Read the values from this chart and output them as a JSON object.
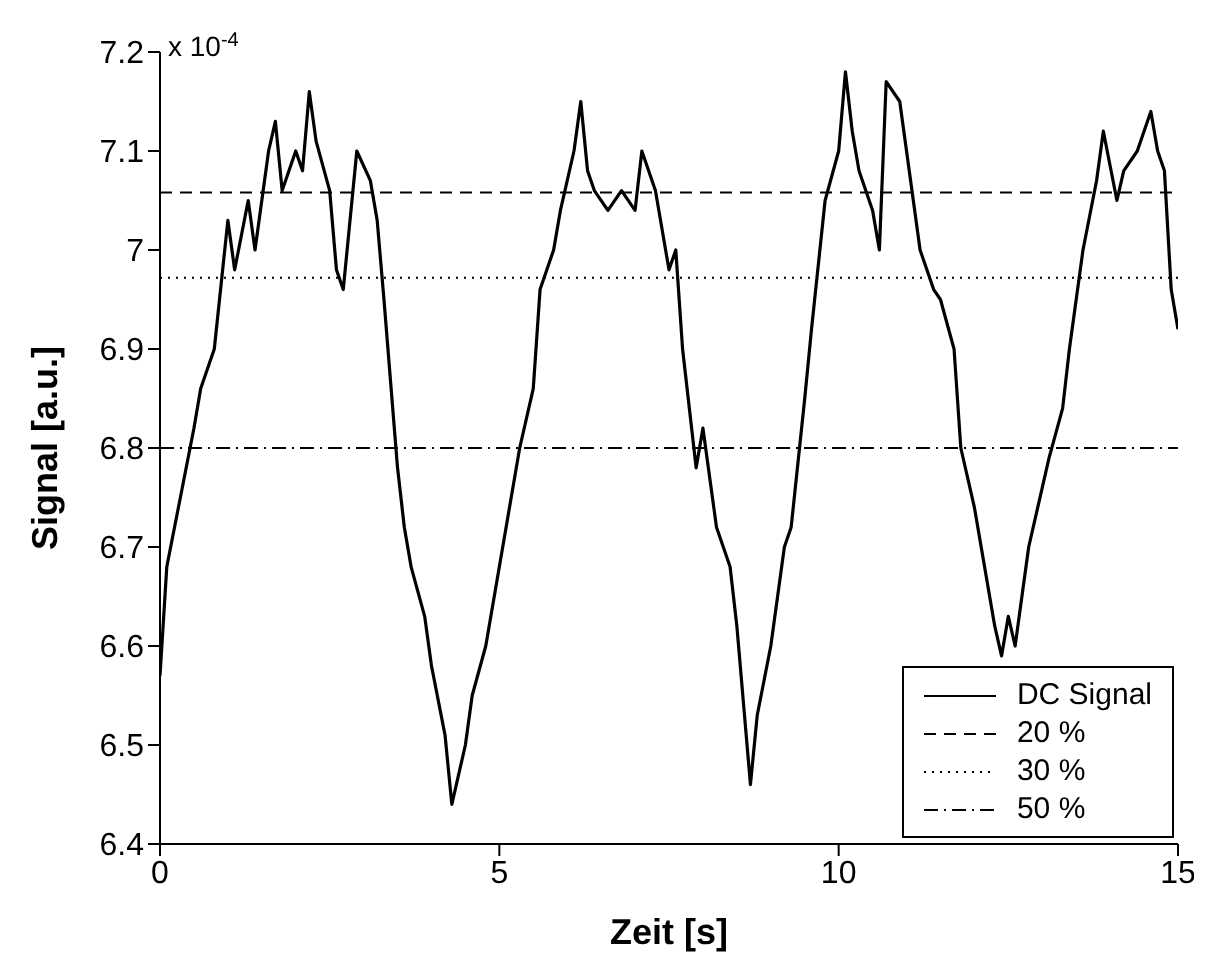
{
  "chart_data": {
    "type": "line",
    "xlabel": "Zeit [s]",
    "ylabel": "Signal [a.u.]",
    "annotations": [
      "x 10$^{-4}$"
    ],
    "xlim": [
      0,
      15
    ],
    "xticks": [
      0,
      5,
      10,
      15
    ],
    "ylim": [
      6.4,
      7.2
    ],
    "yticks": [
      6.4,
      6.5,
      6.6,
      6.7,
      6.8,
      6.9,
      7,
      7.1,
      7.2
    ],
    "legend": "bottom right",
    "series": [
      {
        "name": "DC Signal",
        "color": "#000000",
        "line_style": "solid",
        "x": [
          0,
          0.1,
          0.3,
          0.5,
          0.6,
          0.8,
          1.0,
          1.1,
          1.3,
          1.4,
          1.6,
          1.7,
          1.8,
          2.0,
          2.1,
          2.2,
          2.3,
          2.5,
          2.6,
          2.7,
          2.9,
          3.1,
          3.2,
          3.3,
          3.5,
          3.6,
          3.7,
          3.9,
          4.0,
          4.2,
          4.3,
          4.4,
          4.5,
          4.6,
          4.8,
          5.0,
          5.1,
          5.3,
          5.5,
          5.6,
          5.8,
          5.9,
          6.1,
          6.2,
          6.3,
          6.4,
          6.6,
          6.8,
          7.0,
          7.1,
          7.3,
          7.5,
          7.6,
          7.7,
          7.9,
          8.0,
          8.2,
          8.4,
          8.5,
          8.7,
          8.8,
          9.0,
          9.2,
          9.3,
          9.5,
          9.6,
          9.8,
          10.0,
          10.1,
          10.2,
          10.3,
          10.5,
          10.6,
          10.7,
          10.9,
          11.0,
          11.2,
          11.4,
          11.5,
          11.7,
          11.8,
          12.0,
          12.1,
          12.3,
          12.4,
          12.5,
          12.6,
          12.8,
          13.0,
          13.1,
          13.3,
          13.4,
          13.6,
          13.8,
          13.9,
          14.1,
          14.2,
          14.4,
          14.5,
          14.6,
          14.7,
          14.8,
          14.9,
          15.0
        ],
        "values": [
          6.57,
          6.68,
          6.75,
          6.82,
          6.86,
          6.9,
          7.03,
          6.98,
          7.05,
          7.0,
          7.1,
          7.13,
          7.06,
          7.1,
          7.08,
          7.16,
          7.11,
          7.06,
          6.98,
          6.96,
          7.1,
          7.07,
          7.03,
          6.95,
          6.78,
          6.72,
          6.68,
          6.63,
          6.58,
          6.51,
          6.44,
          6.47,
          6.5,
          6.55,
          6.6,
          6.68,
          6.72,
          6.8,
          6.86,
          6.96,
          7.0,
          7.04,
          7.1,
          7.15,
          7.08,
          7.06,
          7.04,
          7.06,
          7.04,
          7.1,
          7.06,
          6.98,
          7.0,
          6.9,
          6.78,
          6.82,
          6.72,
          6.68,
          6.62,
          6.46,
          6.53,
          6.6,
          6.7,
          6.72,
          6.85,
          6.92,
          7.05,
          7.1,
          7.18,
          7.12,
          7.08,
          7.04,
          7.0,
          7.17,
          7.15,
          7.1,
          7.0,
          6.96,
          6.95,
          6.9,
          6.8,
          6.74,
          6.7,
          6.62,
          6.59,
          6.63,
          6.6,
          6.7,
          6.76,
          6.79,
          6.84,
          6.9,
          7.0,
          7.07,
          7.12,
          7.05,
          7.08,
          7.1,
          7.12,
          7.14,
          7.1,
          7.08,
          6.96,
          6.92
        ]
      },
      {
        "name": "20 %",
        "color": "#000000",
        "line_style": "dashed",
        "x": [
          0,
          15
        ],
        "values": [
          7.058,
          7.058
        ]
      },
      {
        "name": "30 %",
        "color": "#000000",
        "line_style": "dotted",
        "x": [
          0,
          15
        ],
        "values": [
          6.972,
          6.972
        ]
      },
      {
        "name": "50 %",
        "color": "#000000",
        "line_style": "dashdot",
        "x": [
          0,
          15
        ],
        "values": [
          6.8,
          6.8
        ]
      }
    ]
  }
}
